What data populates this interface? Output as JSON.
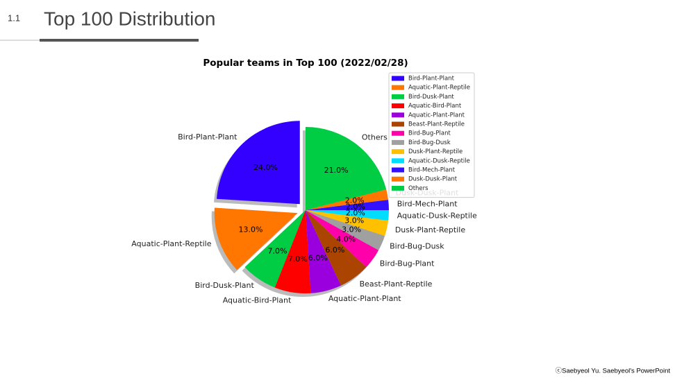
{
  "slide": {
    "number": "1.1",
    "title": "Top 100 Distribution",
    "footer": "ⓒSaebyeol Yu. Saebyeol's PowerPoint"
  },
  "chart_data": {
    "type": "pie",
    "title": "Popular teams in Top 100 (2022/02/28)",
    "categories": [
      "Bird-Plant-Plant",
      "Aquatic-Plant-Reptile",
      "Bird-Dusk-Plant",
      "Aquatic-Bird-Plant",
      "Aquatic-Plant-Plant",
      "Beast-Plant-Reptile",
      "Bird-Bug-Plant",
      "Bird-Bug-Dusk",
      "Dusk-Plant-Reptile",
      "Aquatic-Dusk-Reptile",
      "Bird-Mech-Plant",
      "Dusk-Dusk-Plant",
      "Others"
    ],
    "values": [
      24,
      13,
      7,
      7,
      6,
      6,
      4,
      3,
      3,
      2,
      2,
      2,
      21
    ],
    "value_labels": [
      "24.0%",
      "13.0%",
      "7.0%",
      "7.0%",
      "6.0%",
      "6.0%",
      "4.0%",
      "3.0%",
      "3.0%",
      "2.0%",
      "2.0%",
      "2.0%",
      "21.0%"
    ],
    "colors": [
      "#3300ff",
      "#ff7700",
      "#00cc44",
      "#ff0000",
      "#9900dd",
      "#aa4400",
      "#ff00aa",
      "#a0a0a0",
      "#ffc000",
      "#00ddff",
      "#3311ff",
      "#ff7700",
      "#00cc44"
    ],
    "explode": [
      0.1,
      0.1,
      0,
      0,
      0,
      0,
      0,
      0,
      0,
      0,
      0,
      0,
      0
    ],
    "shadow": true,
    "legend": "upper right"
  }
}
